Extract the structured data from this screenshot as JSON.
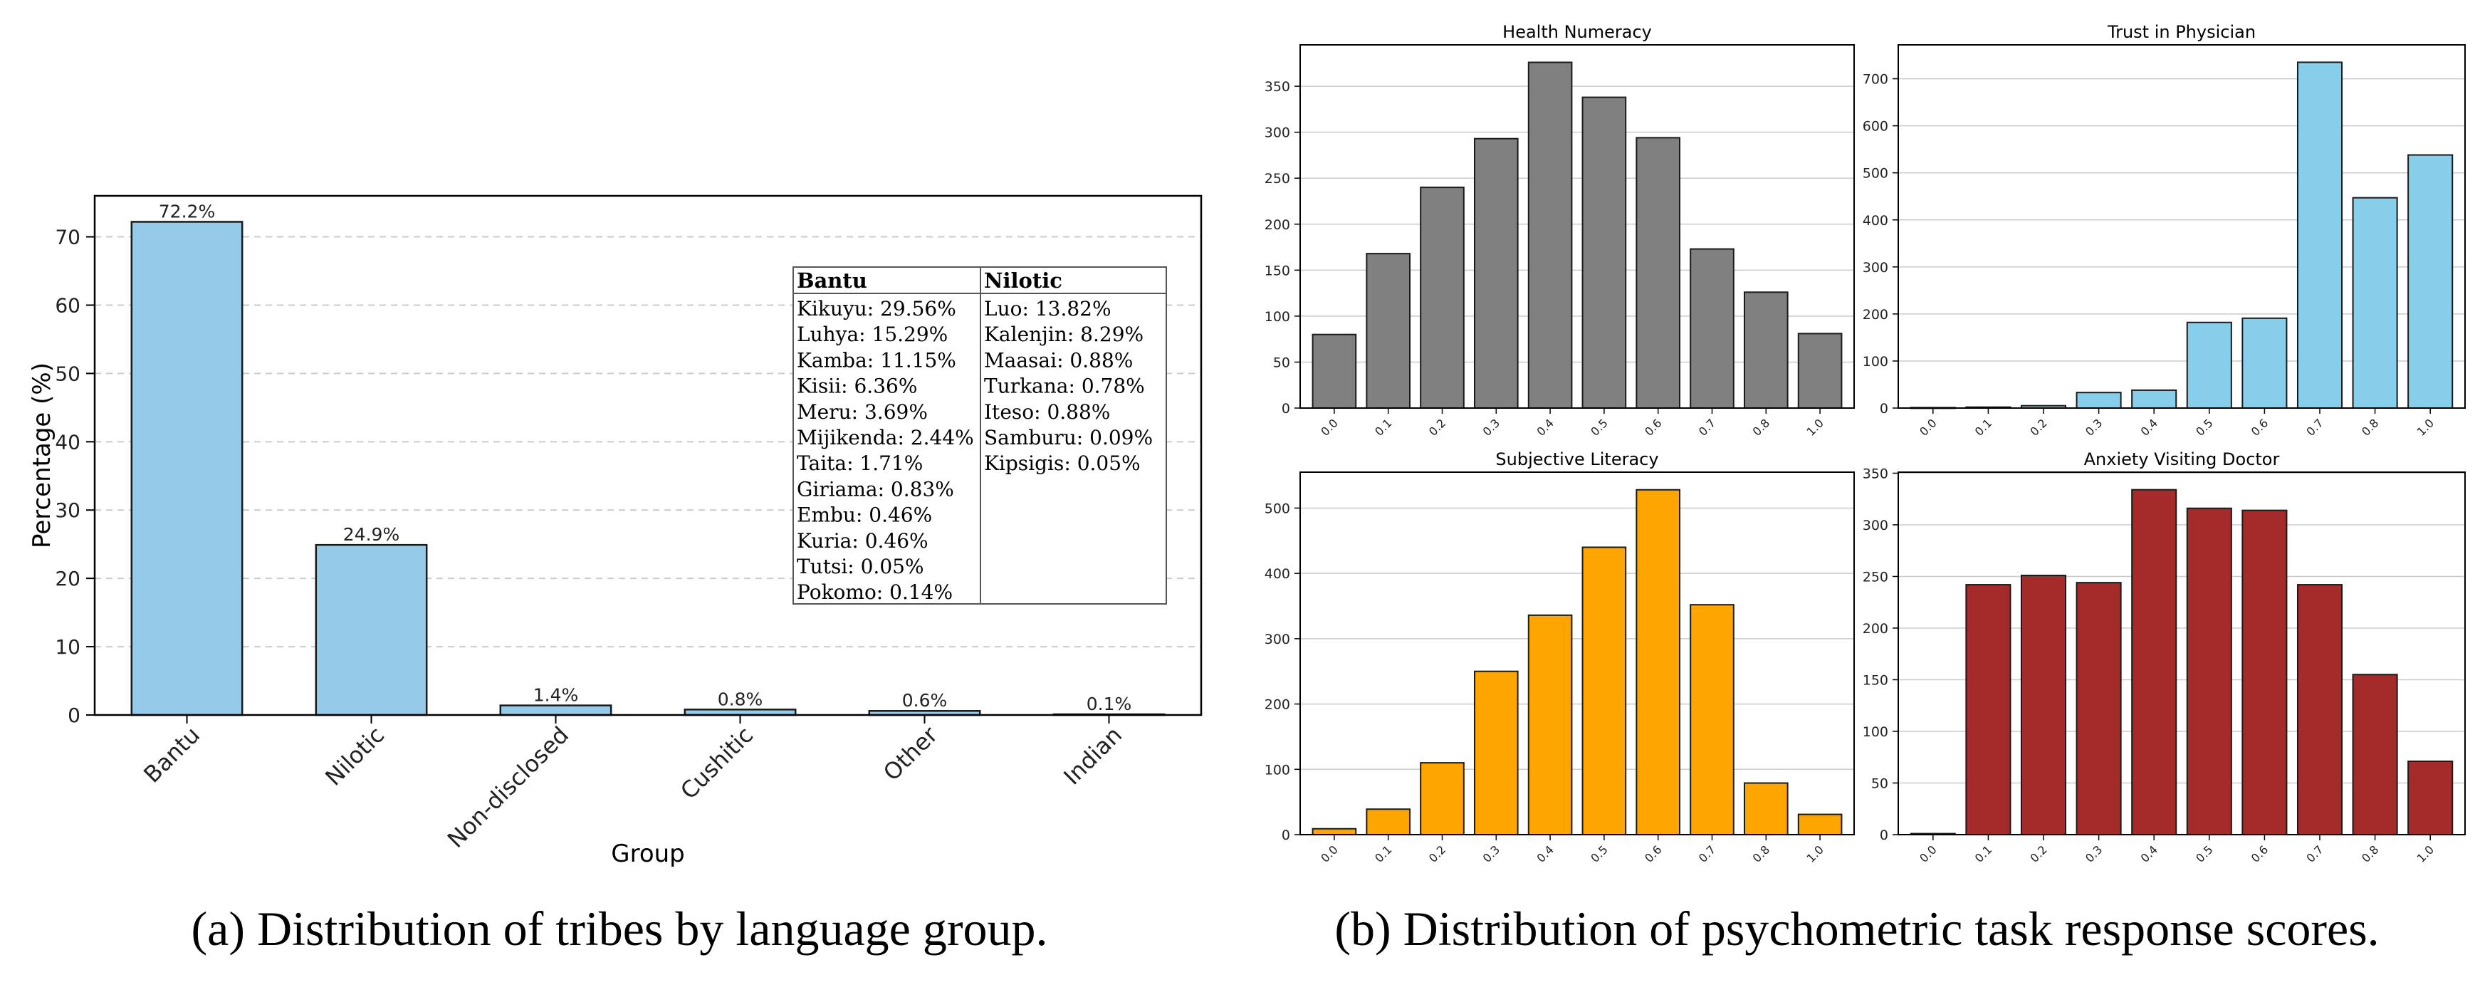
{
  "captions": {
    "a": "(a) Distribution of tribes by language group.",
    "b": "(b) Distribution of psychometric task response scores."
  },
  "colors": {
    "group_bar": "#95cbe8",
    "gray": "#808080",
    "skyblue": "#87ceeb",
    "orange": "#ffa500",
    "brown": "#a52a2a",
    "grid": "#cccccc"
  },
  "chart_data": [
    {
      "type": "bar",
      "categories": [
        "Bantu",
        "Nilotic",
        "Non-disclosed",
        "Cushitic",
        "Other",
        "Indian"
      ],
      "values": [
        72.2,
        24.9,
        1.4,
        0.8,
        0.6,
        0.1
      ],
      "data_labels": [
        "72.2%",
        "24.9%",
        "1.4%",
        "0.8%",
        "0.6%",
        "0.1%"
      ],
      "xlabel": "Group",
      "ylabel": "Percentage (%)",
      "ylim": [
        0,
        76
      ],
      "yticks": [
        0,
        10,
        20,
        30,
        40,
        50,
        60,
        70
      ],
      "grid": "y dashed",
      "table": {
        "headers": [
          "Bantu",
          "Nilotic"
        ],
        "columns": [
          [
            "Kikuyu: 29.56%",
            "Luhya: 15.29%",
            "Kamba: 11.15%",
            "Kisii: 6.36%",
            "Meru: 3.69%",
            "Mijikenda: 2.44%",
            "Taita: 1.71%",
            "Giriama: 0.83%",
            "Embu: 0.46%",
            "Kuria: 0.46%",
            "Tutsi: 0.05%",
            "Pokomo: 0.14%"
          ],
          [
            "Luo: 13.82%",
            "Kalenjin: 8.29%",
            "Maasai: 0.88%",
            "Turkana: 0.78%",
            "Iteso: 0.88%",
            "Samburu: 0.09%",
            "Kipsigis: 0.05%"
          ]
        ]
      }
    },
    {
      "type": "bar",
      "title": "Health Numeracy",
      "categories": [
        "0.0",
        "0.1",
        "0.2",
        "0.3",
        "0.4",
        "0.5",
        "0.6",
        "0.7",
        "0.8",
        "1.0"
      ],
      "values": [
        80,
        168,
        240,
        293,
        376,
        338,
        294,
        173,
        126,
        81
      ],
      "ylim": [
        0,
        395
      ],
      "yticks": [
        0,
        50,
        100,
        150,
        200,
        250,
        300,
        350
      ],
      "color": "gray",
      "grid": "y"
    },
    {
      "type": "bar",
      "title": "Trust in Physician",
      "categories": [
        "0.0",
        "0.1",
        "0.2",
        "0.3",
        "0.4",
        "0.5",
        "0.6",
        "0.7",
        "0.8",
        "1.0"
      ],
      "values": [
        1,
        2,
        5,
        33,
        38,
        182,
        191,
        735,
        447,
        538
      ],
      "ylim": [
        0,
        772
      ],
      "yticks": [
        0,
        100,
        200,
        300,
        400,
        500,
        600,
        700
      ],
      "color": "skyblue",
      "grid": "y"
    },
    {
      "type": "bar",
      "title": "Subjective Literacy",
      "categories": [
        "0.0",
        "0.1",
        "0.2",
        "0.3",
        "0.4",
        "0.5",
        "0.6",
        "0.7",
        "0.8",
        "1.0"
      ],
      "values": [
        9,
        39,
        110,
        250,
        336,
        440,
        528,
        352,
        79,
        31
      ],
      "ylim": [
        0,
        555
      ],
      "yticks": [
        0,
        100,
        200,
        300,
        400,
        500
      ],
      "color": "orange",
      "grid": "y"
    },
    {
      "type": "bar",
      "title": "Anxiety Visiting Doctor",
      "categories": [
        "0.0",
        "0.1",
        "0.2",
        "0.3",
        "0.4",
        "0.5",
        "0.6",
        "0.7",
        "0.8",
        "1.0"
      ],
      "values": [
        1,
        242,
        251,
        244,
        334,
        316,
        314,
        242,
        155,
        71
      ],
      "ylim": [
        0,
        351
      ],
      "yticks": [
        0,
        50,
        100,
        150,
        200,
        250,
        300,
        350
      ],
      "color": "brown",
      "grid": "y"
    }
  ]
}
